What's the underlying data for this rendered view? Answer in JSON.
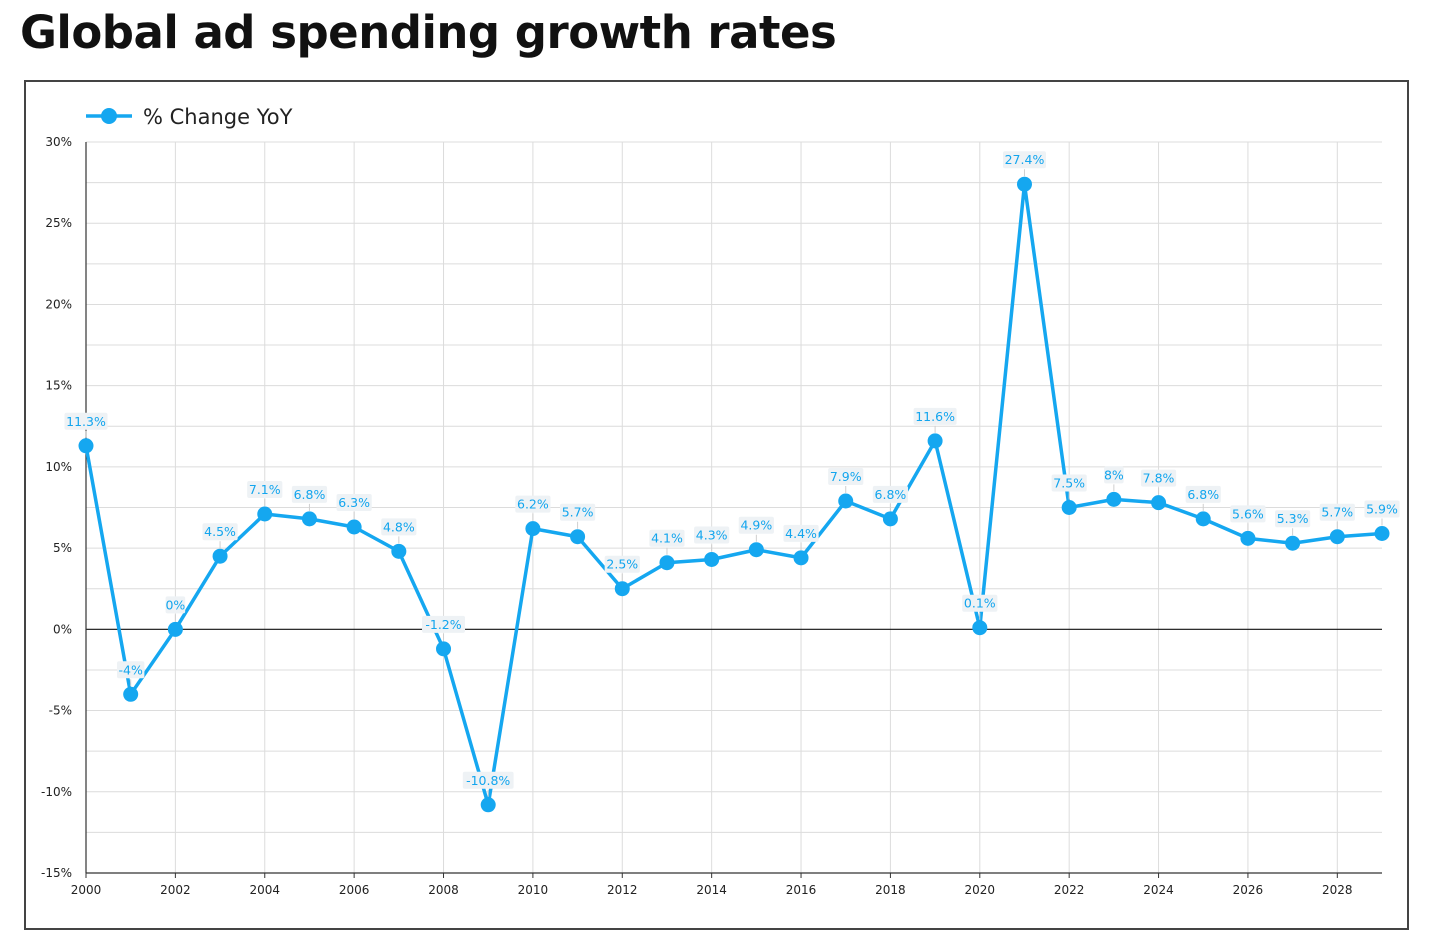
{
  "title": "Global ad spending growth rates",
  "chart_data": {
    "type": "line",
    "title": "Global ad spending growth rates",
    "xlabel": "",
    "ylabel": "",
    "x": [
      2000,
      2001,
      2002,
      2003,
      2004,
      2005,
      2006,
      2007,
      2008,
      2009,
      2010,
      2011,
      2012,
      2013,
      2014,
      2015,
      2016,
      2017,
      2018,
      2019,
      2020,
      2021,
      2022,
      2023,
      2024,
      2025,
      2026,
      2027,
      2028,
      2029
    ],
    "series": [
      {
        "name": "% Change YoY",
        "color": "#15a7f0",
        "values": [
          11.3,
          -4,
          0,
          4.5,
          7.1,
          6.8,
          6.3,
          4.8,
          -1.2,
          -10.8,
          6.2,
          5.7,
          2.5,
          4.1,
          4.3,
          4.9,
          4.4,
          7.9,
          6.8,
          11.6,
          0.1,
          27.4,
          7.5,
          8,
          7.8,
          6.8,
          5.6,
          5.3,
          5.7,
          5.9
        ],
        "labels": [
          "11.3%",
          "-4%",
          "0%",
          "4.5%",
          "7.1%",
          "6.8%",
          "6.3%",
          "4.8%",
          "-1.2%",
          "-10.8%",
          "6.2%",
          "5.7%",
          "2.5%",
          "4.1%",
          "4.3%",
          "4.9%",
          "4.4%",
          "7.9%",
          "6.8%",
          "11.6%",
          "0.1%",
          "27.4%",
          "7.5%",
          "8%",
          "7.8%",
          "6.8%",
          "5.6%",
          "5.3%",
          "5.7%",
          "5.9%"
        ]
      }
    ],
    "ylim": [
      -15,
      30
    ],
    "xlim": [
      2000,
      2029
    ],
    "yticks": [
      30,
      25,
      20,
      15,
      10,
      5,
      0,
      -5,
      -10,
      -15
    ],
    "ytick_labels": [
      "30%",
      "25%",
      "20%",
      "15%",
      "10%",
      "5%",
      "0%",
      "-5%",
      "-10%",
      "-15%"
    ],
    "xticks": [
      2000,
      2002,
      2004,
      2006,
      2008,
      2010,
      2012,
      2014,
      2016,
      2018,
      2020,
      2022,
      2024,
      2026,
      2028
    ],
    "xtick_labels": [
      "2000",
      "2002",
      "2004",
      "2006",
      "2008",
      "2010",
      "2012",
      "2014",
      "2016",
      "2018",
      "2020",
      "2022",
      "2024",
      "2026",
      "2028"
    ],
    "grid": true,
    "legend": "top-left"
  }
}
